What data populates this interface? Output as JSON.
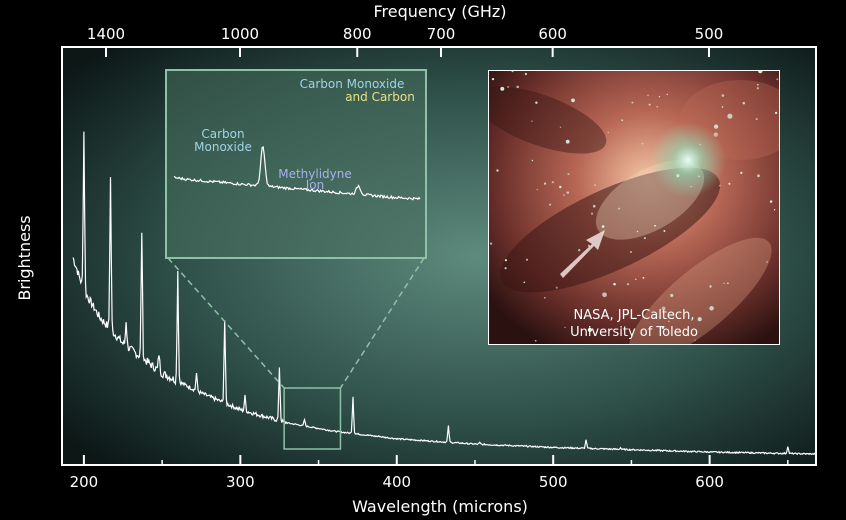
{
  "chart_data": {
    "type": "line",
    "title": "",
    "xlabel": "Wavelength (microns)",
    "ylabel": "Brightness",
    "top_axis_label": "Frequency (GHz)",
    "xlim": [
      186,
      668
    ],
    "ylim": [
      0,
      100
    ],
    "x_ticks": [
      200,
      300,
      400,
      500,
      600
    ],
    "top_ticks": [
      1400,
      1000,
      800,
      700,
      600,
      500
    ],
    "grid": false,
    "continuum": {
      "x": [
        193,
        200,
        210,
        225,
        250,
        275,
        300,
        330,
        360,
        400,
        450,
        500,
        550,
        600,
        668
      ],
      "y": [
        60,
        50,
        42,
        34,
        25,
        19,
        14,
        10,
        7.5,
        5.2,
        3.6,
        2.6,
        1.9,
        1.2,
        0.6
      ]
    },
    "emission_lines": [
      {
        "x": 200,
        "y": 98
      },
      {
        "x": 217,
        "y": 84
      },
      {
        "x": 227,
        "y": 41
      },
      {
        "x": 237,
        "y": 68
      },
      {
        "x": 248,
        "y": 31
      },
      {
        "x": 260,
        "y": 56
      },
      {
        "x": 272,
        "y": 25
      },
      {
        "x": 290,
        "y": 41
      },
      {
        "x": 303,
        "y": 18
      },
      {
        "x": 325,
        "y": 27
      },
      {
        "x": 341,
        "y": 11
      },
      {
        "x": 372,
        "y": 18
      },
      {
        "x": 389,
        "y": 6
      },
      {
        "x": 433,
        "y": 9
      },
      {
        "x": 453,
        "y": 4
      },
      {
        "x": 521,
        "y": 5
      },
      {
        "x": 543,
        "y": 2.5
      },
      {
        "x": 650,
        "y": 3
      }
    ],
    "zoom_box": {
      "x": [
        328,
        364
      ]
    },
    "inset": {
      "annotations": [
        {
          "text": "Carbon",
          "color": "cyan"
        },
        {
          "text": "Monoxide",
          "color": "cyan"
        },
        {
          "text": "Methylidyne",
          "color": "blue"
        },
        {
          "text": "Ion",
          "color": "blue"
        },
        {
          "text": "Carbon Monoxide",
          "color": "cyan"
        },
        {
          "text": "and Carbon",
          "color": "yellow"
        }
      ]
    },
    "image_credit": [
      "NASA, JPL-Caltech,",
      "University of Toledo"
    ]
  }
}
